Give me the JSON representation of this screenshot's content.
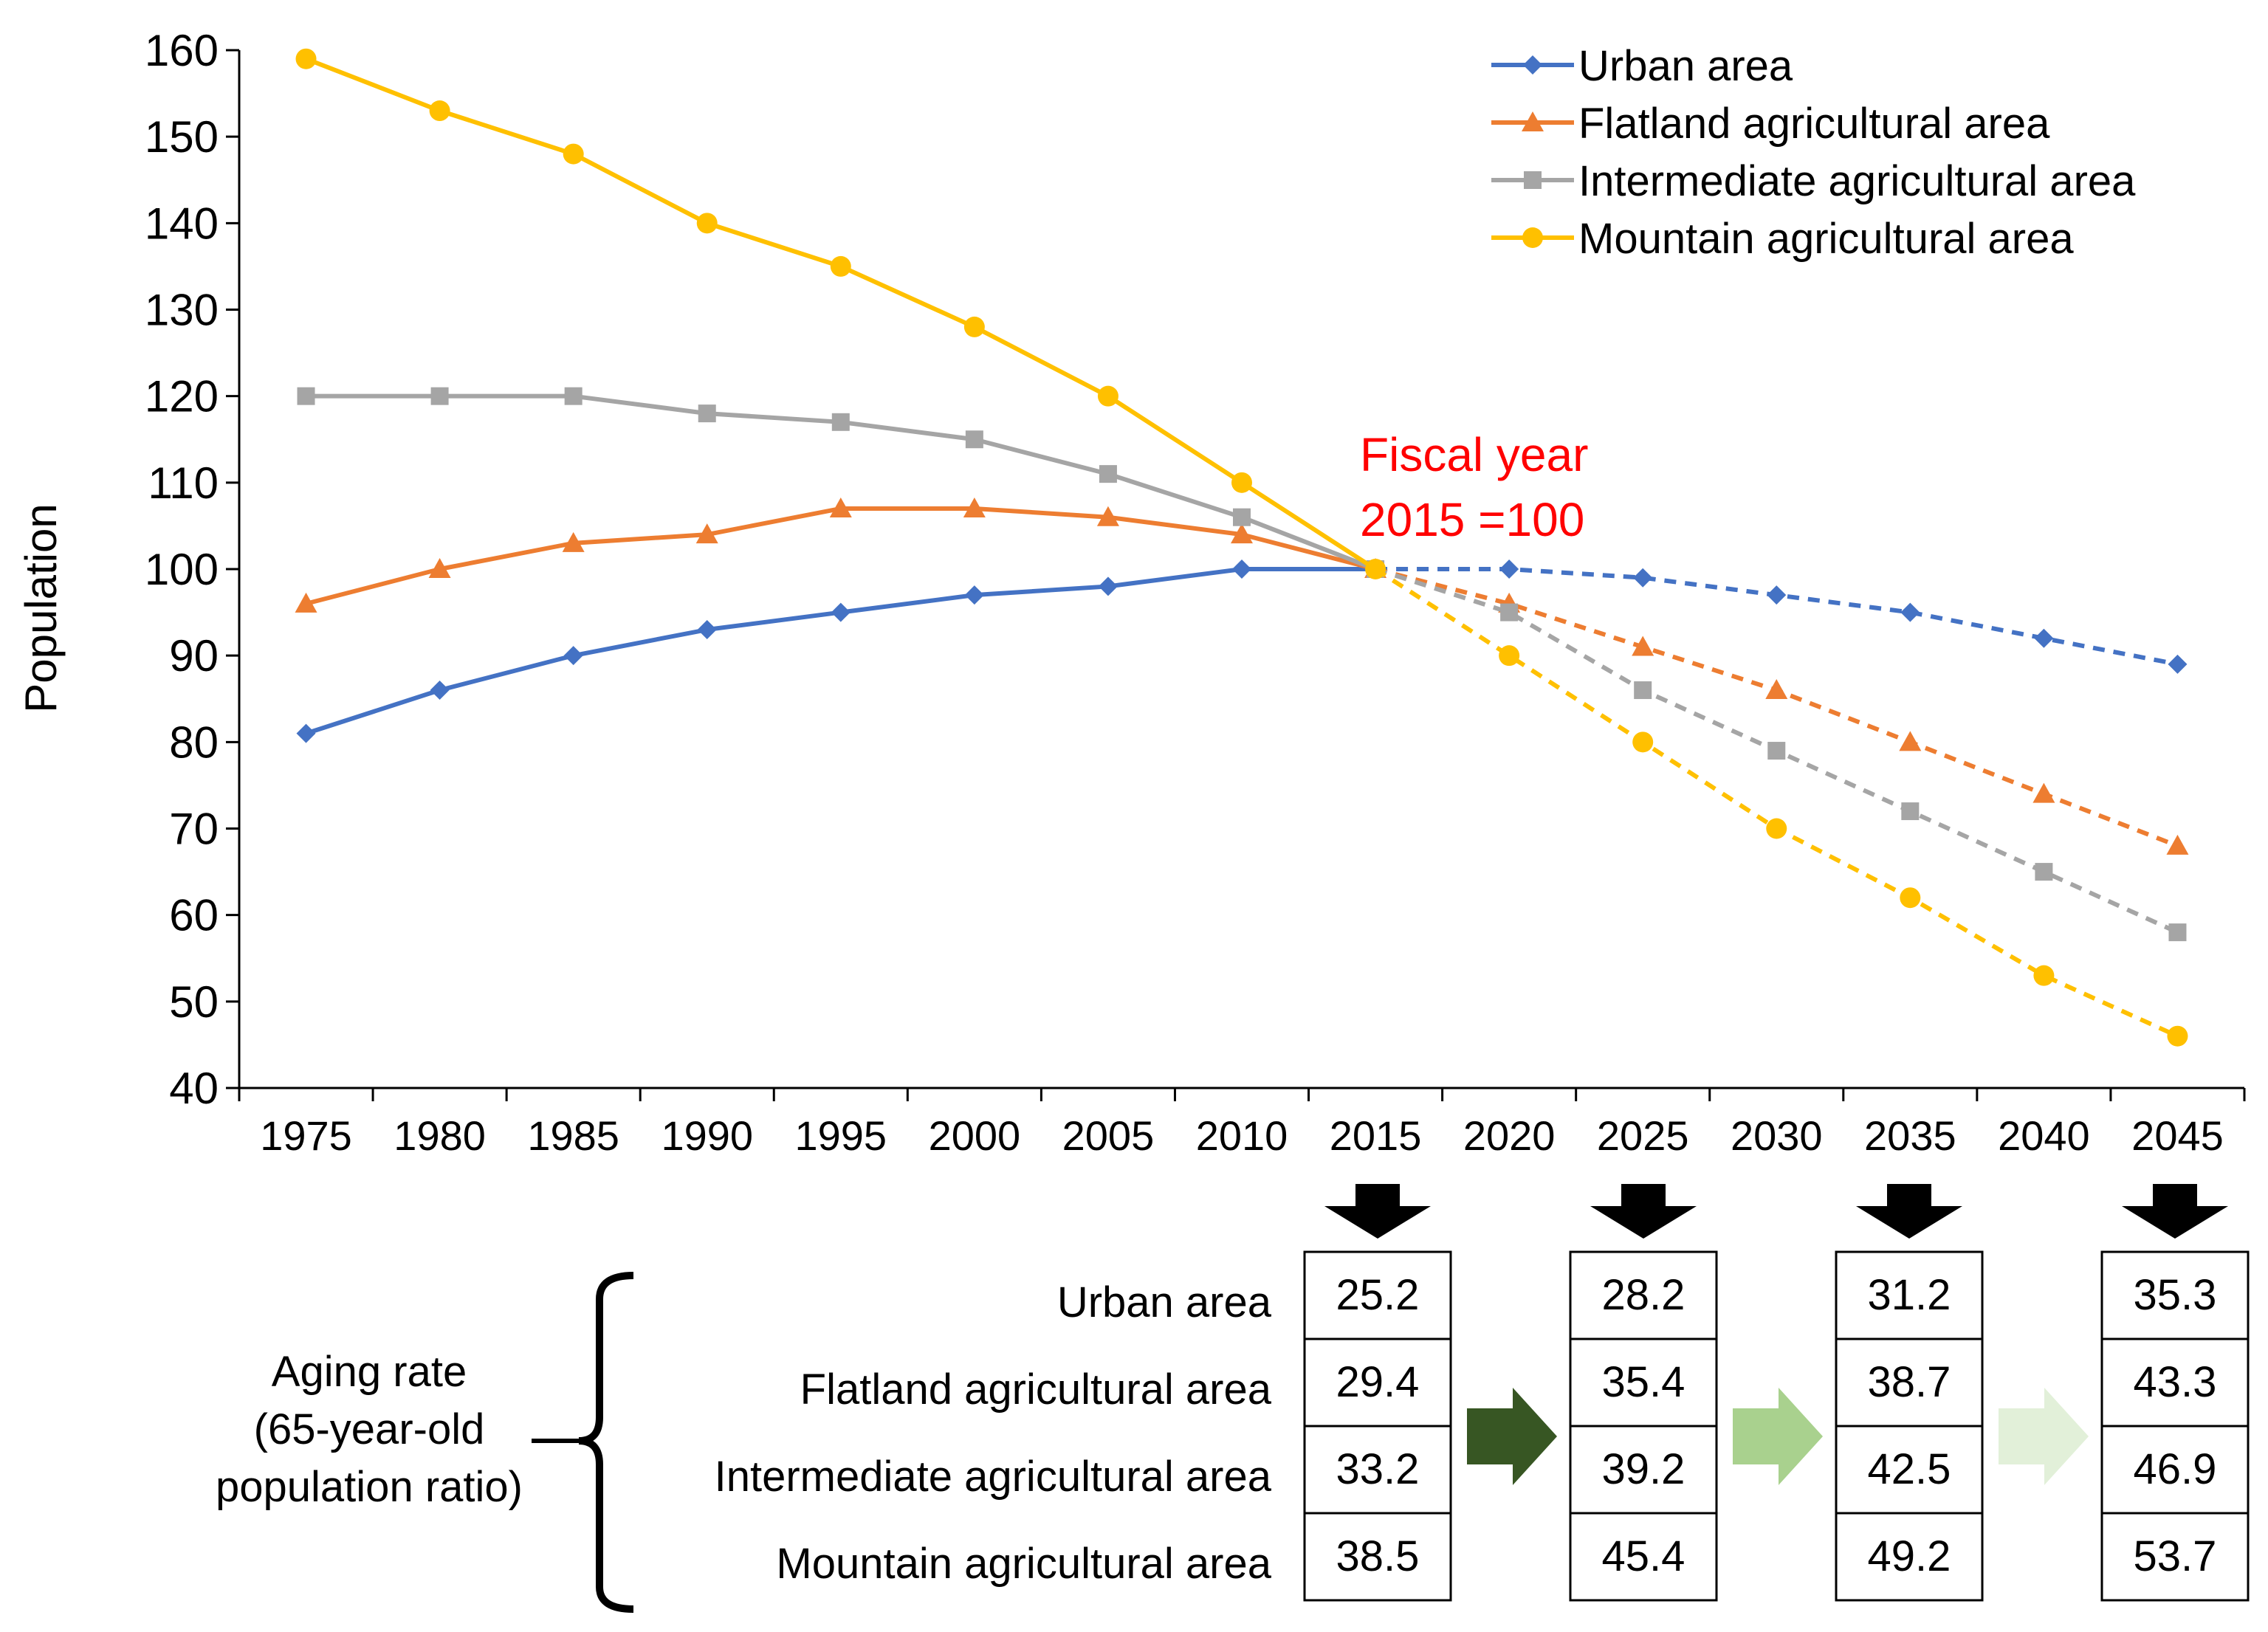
{
  "chart_data": {
    "type": "line",
    "title": "",
    "xlabel": "",
    "ylabel": "Population",
    "ylim": [
      40,
      160
    ],
    "y_ticks": [
      40,
      50,
      60,
      70,
      80,
      90,
      100,
      110,
      120,
      130,
      140,
      150,
      160
    ],
    "x": [
      "1975",
      "1980",
      "1985",
      "1990",
      "1995",
      "2000",
      "2005",
      "2010",
      "2015",
      "2020",
      "2025",
      "2030",
      "2035",
      "2040",
      "2045"
    ],
    "projection_start": "2015",
    "legend_position": "top-right",
    "series": [
      {
        "name": "Urban area",
        "color": "#4472C4",
        "marker": "diamond",
        "values": [
          81,
          86,
          90,
          93,
          95,
          97,
          98,
          100,
          100,
          100,
          99,
          97,
          95,
          92,
          89
        ]
      },
      {
        "name": "Flatland agricultural area",
        "color": "#ED7D31",
        "marker": "triangle",
        "values": [
          96,
          100,
          103,
          104,
          107,
          107,
          106,
          104,
          100,
          96,
          91,
          86,
          80,
          74,
          68
        ]
      },
      {
        "name": "Intermediate agricultural area",
        "color": "#A5A5A5",
        "marker": "square",
        "values": [
          120,
          120,
          120,
          118,
          117,
          115,
          111,
          106,
          100,
          95,
          86,
          79,
          72,
          65,
          58
        ]
      },
      {
        "name": "Mountain agricultural area",
        "color": "#FFC000",
        "marker": "circle",
        "values": [
          159,
          153,
          148,
          140,
          135,
          128,
          120,
          110,
          100,
          90,
          80,
          70,
          62,
          53,
          46
        ]
      }
    ],
    "annotation": {
      "line1": "Fiscal year",
      "line2": "2015 =100",
      "color": "#FF0000"
    },
    "aging_table": {
      "label_lines": [
        "Aging rate",
        "(65-year-old",
        "population ratio)"
      ],
      "rows": [
        "Urban area",
        "Flatland agricultural area",
        "Intermediate agricultural area",
        "Mountain agricultural area"
      ],
      "columns": [
        {
          "year": "2015",
          "values": [
            "25.2",
            "29.4",
            "33.2",
            "38.5"
          ]
        },
        {
          "year": "2025",
          "values": [
            "28.2",
            "35.4",
            "39.2",
            "45.4"
          ]
        },
        {
          "year": "2035",
          "values": [
            "31.2",
            "38.7",
            "42.5",
            "49.2"
          ]
        },
        {
          "year": "2045",
          "values": [
            "35.3",
            "43.3",
            "46.9",
            "53.7"
          ]
        }
      ],
      "arrow_colors": [
        "#375623",
        "#A9D18E",
        "#E2F0D9"
      ]
    }
  }
}
